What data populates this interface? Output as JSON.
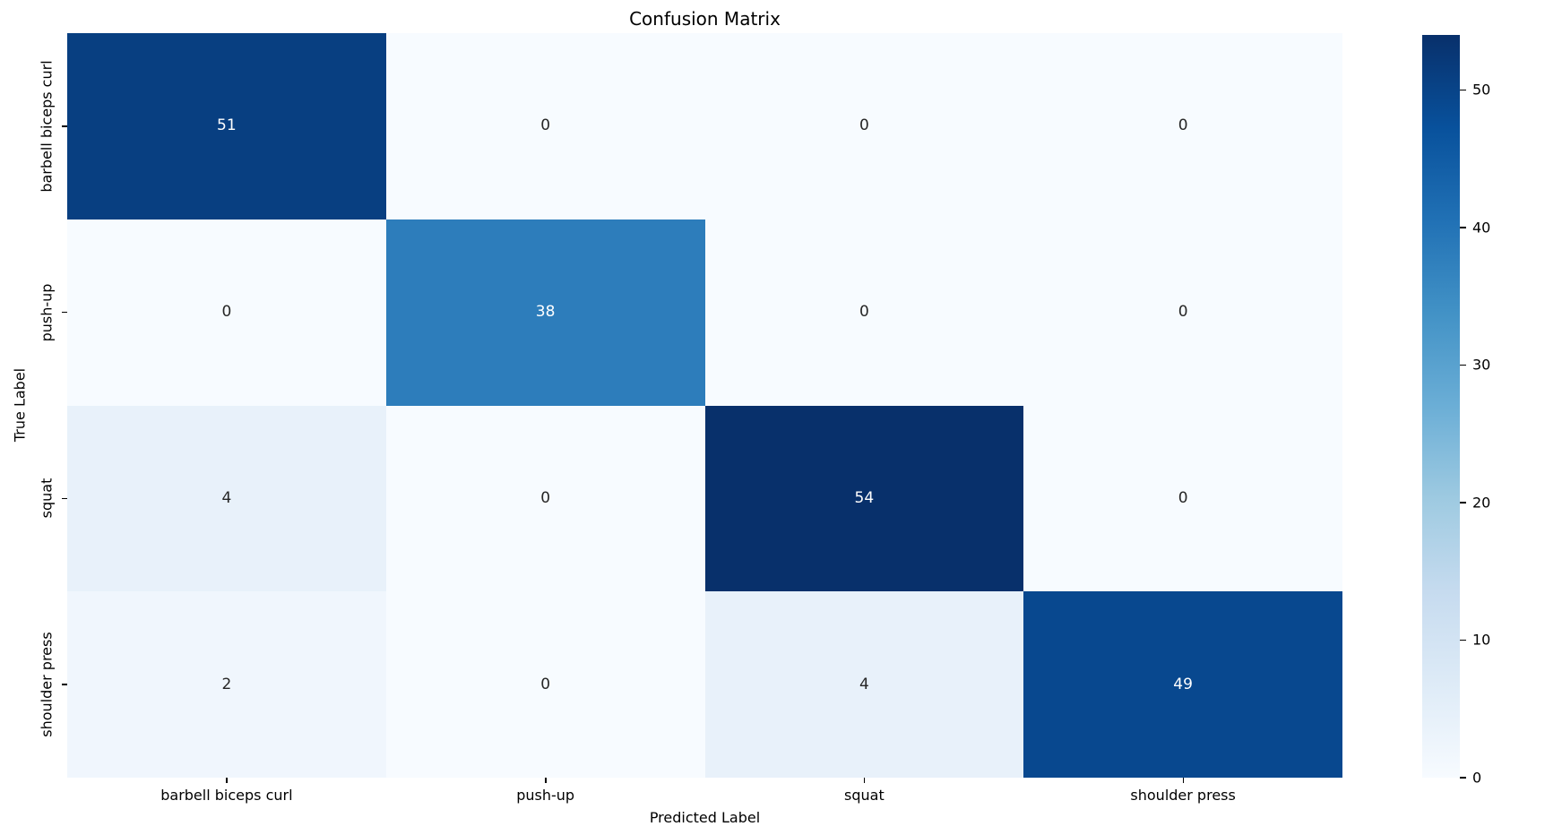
{
  "chart_data": {
    "type": "heatmap",
    "title": "Confusion Matrix",
    "xlabel": "Predicted Label",
    "ylabel": "True Label",
    "categories": [
      "barbell biceps curl",
      "push-up",
      "squat",
      "shoulder press"
    ],
    "matrix": [
      [
        51,
        0,
        0,
        0
      ],
      [
        0,
        38,
        0,
        0
      ],
      [
        4,
        0,
        54,
        0
      ],
      [
        2,
        0,
        4,
        49
      ]
    ],
    "vmin": 0,
    "vmax": 54,
    "colormap": "Blues",
    "grid": false,
    "legend_position": "colorbar-right",
    "cell_colors": [
      [
        "#083f81",
        "#f7fbff",
        "#f7fbff",
        "#f7fbff"
      ],
      [
        "#f7fbff",
        "#2d7dbb",
        "#f7fbff",
        "#f7fbff"
      ],
      [
        "#e8f1fa",
        "#f7fbff",
        "#08306b",
        "#f7fbff"
      ],
      [
        "#f0f6fd",
        "#f7fbff",
        "#e8f1fa",
        "#08488f"
      ]
    ],
    "cell_text_colors": [
      [
        "#ffffff",
        "#262626",
        "#262626",
        "#262626"
      ],
      [
        "#262626",
        "#ffffff",
        "#262626",
        "#262626"
      ],
      [
        "#262626",
        "#262626",
        "#ffffff",
        "#262626"
      ],
      [
        "#262626",
        "#262626",
        "#262626",
        "#ffffff"
      ]
    ],
    "colorbar_ticks": [
      0,
      10,
      20,
      30,
      40,
      50
    ],
    "colorbar_gradient_top_to_bottom": [
      "#08306b",
      "#08519c",
      "#2171b5",
      "#4292c6",
      "#6baed6",
      "#9ecae1",
      "#c6dbef",
      "#deebf7",
      "#f7fbff"
    ],
    "tick_color": "#000000",
    "background_color": "#ffffff"
  }
}
